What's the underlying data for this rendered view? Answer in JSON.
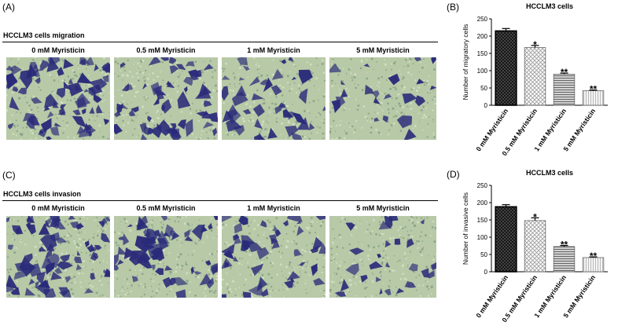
{
  "panels": {
    "a": {
      "label": "(A)",
      "title": "HCCLM3 cells migration"
    },
    "b": {
      "label": "(B)"
    },
    "c": {
      "label": "(C)",
      "title": "HCCLM3 cells invasion"
    },
    "d": {
      "label": "(D)"
    }
  },
  "conditions": [
    "0 mM Myristicin",
    "0.5 mM Myristicin",
    "1 mM Myristicin",
    "5 mM Myristicin"
  ],
  "colors": {
    "stain": "#2a2a7a",
    "background": "#b7c9a6",
    "bar_dark": "#333333",
    "bar_mid": "#888888",
    "bar_light": "#bbbbbb"
  },
  "chart_data": [
    {
      "type": "bar",
      "title": "HCCLM3 cells",
      "xlabel": "",
      "ylabel": "Number of migratory cells",
      "categories": [
        "0 mM Myristicin",
        "0.5 mM Myristicin",
        "1 mM Myristicin",
        "5 mM Myristicin"
      ],
      "values": [
        215,
        167,
        90,
        42
      ],
      "errors": [
        7,
        6,
        3,
        2
      ],
      "significance": [
        "",
        "*",
        "**",
        "**"
      ],
      "ylim": [
        0,
        250
      ],
      "yticks": [
        0,
        50,
        100,
        150,
        200,
        250
      ]
    },
    {
      "type": "bar",
      "title": "HCCLM3 cells",
      "xlabel": "",
      "ylabel": "Number of invasive cells",
      "categories": [
        "0 mM Myristicin",
        "0.5 mM Myristicin",
        "1 mM Myristicin",
        "5 mM Myristicin"
      ],
      "values": [
        188,
        148,
        73,
        41
      ],
      "errors": [
        6,
        8,
        3,
        2
      ],
      "significance": [
        "",
        "*",
        "**",
        "**"
      ],
      "ylim": [
        0,
        250
      ],
      "yticks": [
        0,
        50,
        100,
        150,
        200,
        250
      ]
    }
  ]
}
